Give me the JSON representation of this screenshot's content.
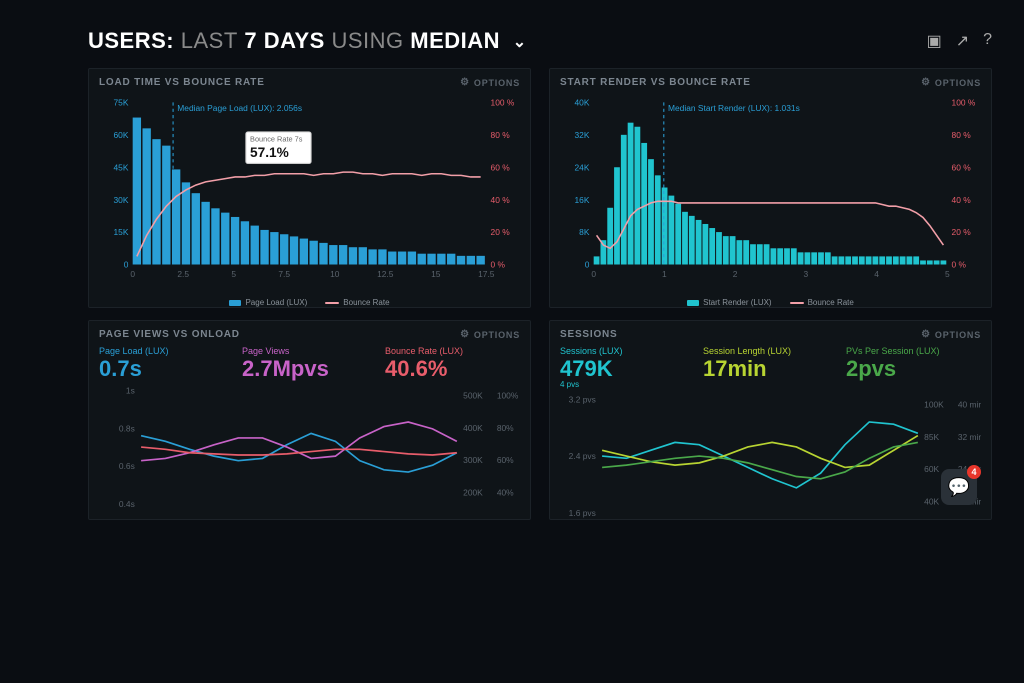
{
  "header": {
    "prefix": "USERS:",
    "dim1": "LAST",
    "bold1": "7 DAYS",
    "dim2": "USING",
    "bold2": "MEDIAN"
  },
  "panel1": {
    "title": "LOAD TIME VS BOUNCE RATE",
    "options": "OPTIONS",
    "type": "bar+line",
    "bar_color": "#2a9fd6",
    "line_color": "#f29fa8",
    "median_line_color": "#2a9fd6",
    "median_label": "Median Page Load (LUX): 2.056s",
    "median_x": 2.056,
    "y_left_label_color": "#2a9fd6",
    "y_left_ticks": [
      "0",
      "15K",
      "30K",
      "45K",
      "60K",
      "75K"
    ],
    "y_left_max": 75,
    "y_right_ticks": [
      "0 %",
      "20 %",
      "40 %",
      "60 %",
      "80 %",
      "100 %"
    ],
    "y_right_max": 100,
    "y_right_color": "#e85d6b",
    "x_ticks": [
      "0",
      "2.5",
      "5",
      "7.5",
      "10",
      "12.5",
      "15",
      "17.5"
    ],
    "x_max": 18,
    "bars": [
      68,
      63,
      58,
      55,
      44,
      38,
      33,
      29,
      26,
      24,
      22,
      20,
      18,
      16,
      15,
      14,
      13,
      12,
      11,
      10,
      9,
      9,
      8,
      8,
      7,
      7,
      6,
      6,
      6,
      5,
      5,
      5,
      5,
      4,
      4,
      4
    ],
    "line": [
      5,
      18,
      28,
      36,
      42,
      46,
      49,
      51,
      52,
      53,
      54,
      54,
      55,
      55,
      56,
      56,
      56,
      56,
      55,
      56,
      56,
      57,
      57,
      56,
      56,
      55,
      56,
      56,
      56,
      55,
      56,
      56,
      55,
      55,
      54,
      54
    ],
    "tooltip": {
      "label": "Bounce Rate 7s",
      "value": "57.1%"
    },
    "legend": [
      {
        "label": "Page Load (LUX)",
        "type": "bar",
        "color": "#2a9fd6"
      },
      {
        "label": "Bounce Rate",
        "type": "line",
        "color": "#f29fa8"
      }
    ]
  },
  "panel2": {
    "title": "START RENDER VS BOUNCE RATE",
    "options": "OPTIONS",
    "type": "bar+line",
    "bar_color": "#20c4cf",
    "line_color": "#f29fa8",
    "median_line_color": "#2a9fd6",
    "median_label": "Median Start Render (LUX): 1.031s",
    "median_x": 1.031,
    "y_left_ticks": [
      "0",
      "8K",
      "16K",
      "24K",
      "32K",
      "40K"
    ],
    "y_left_max": 40,
    "y_right_ticks": [
      "0 %",
      "20 %",
      "40 %",
      "60 %",
      "80 %",
      "100 %"
    ],
    "y_right_max": 100,
    "y_right_color": "#e85d6b",
    "x_ticks": [
      "0",
      "1",
      "2",
      "3",
      "4",
      "5"
    ],
    "x_max": 5.2,
    "bars": [
      2,
      6,
      14,
      24,
      32,
      35,
      34,
      30,
      26,
      22,
      19,
      17,
      15,
      13,
      12,
      11,
      10,
      9,
      8,
      7,
      7,
      6,
      6,
      5,
      5,
      5,
      4,
      4,
      4,
      4,
      3,
      3,
      3,
      3,
      3,
      2,
      2,
      2,
      2,
      2,
      2,
      2,
      2,
      2,
      2,
      2,
      2,
      2,
      1,
      1,
      1,
      1
    ],
    "line": [
      18,
      12,
      10,
      14,
      22,
      30,
      34,
      36,
      38,
      39,
      39,
      39,
      38,
      38,
      38,
      38,
      38,
      38,
      38,
      38,
      38,
      38,
      38,
      38,
      38,
      38,
      38,
      38,
      38,
      38,
      38,
      38,
      38,
      38,
      38,
      38,
      38,
      38,
      38,
      38,
      38,
      38,
      37,
      36,
      36,
      35,
      34,
      32,
      29,
      24,
      18,
      12
    ],
    "legend": [
      {
        "label": "Start Render (LUX)",
        "type": "bar",
        "color": "#20c4cf"
      },
      {
        "label": "Bounce Rate",
        "type": "line",
        "color": "#f29fa8"
      }
    ]
  },
  "panel3": {
    "title": "PAGE VIEWS VS ONLOAD",
    "options": "OPTIONS",
    "type": "multiline",
    "metrics": [
      {
        "label": "Page Load (LUX)",
        "value": "0.7s",
        "color": "#2a9fd6"
      },
      {
        "label": "Page Views",
        "value": "2.7Mpvs",
        "color": "#c863c8"
      },
      {
        "label": "Bounce Rate (LUX)",
        "value": "40.6%",
        "color": "#e85d6b"
      }
    ],
    "y_left_ticks": [
      "0.4s",
      "0.6s",
      "0.8s",
      "1s"
    ],
    "y_left_color": "#2a9fd6",
    "y_right1_ticks": [
      "200K",
      "300K",
      "400K",
      "500K"
    ],
    "y_right1_color": "#c863c8",
    "y_right2_ticks": [
      "40%",
      "60%",
      "80%",
      "100%"
    ],
    "y_right2_color": "#e85d6b",
    "lines": [
      {
        "color": "#2a9fd6",
        "pts": [
          60,
          55,
          48,
          42,
          38,
          40,
          52,
          62,
          55,
          38,
          30,
          28,
          34,
          45
        ]
      },
      {
        "color": "#c863c8",
        "pts": [
          38,
          40,
          45,
          52,
          58,
          58,
          50,
          40,
          42,
          58,
          68,
          72,
          66,
          55
        ]
      },
      {
        "color": "#e85d6b",
        "pts": [
          50,
          48,
          45,
          44,
          43,
          43,
          44,
          46,
          48,
          48,
          46,
          44,
          43,
          45
        ]
      }
    ]
  },
  "panel4": {
    "title": "SESSIONS",
    "options": "OPTIONS",
    "type": "multiline",
    "metrics": [
      {
        "label": "Sessions (LUX)",
        "value": "479K",
        "sub": "4 pvs",
        "color": "#20c4cf"
      },
      {
        "label": "Session Length (LUX)",
        "value": "17min",
        "color": "#b8d432"
      },
      {
        "label": "PVs Per Session (LUX)",
        "value": "2pvs",
        "color": "#4aa84a"
      }
    ],
    "y_left_ticks": [
      "1.6 pvs",
      "2.4 pvs",
      "3.2 pvs"
    ],
    "y_left_color": "#4aa84a",
    "y_right_rows": [
      {
        "a": "100K",
        "b": "40 min"
      },
      {
        "a": "85K",
        "b": "32 min"
      },
      {
        "a": "60K",
        "b": "24 min"
      },
      {
        "a": "40K",
        "b": "16 min"
      }
    ],
    "y_right_a_color": "#20c4cf",
    "y_right_b_color": "#b8d432",
    "lines": [
      {
        "color": "#20c4cf",
        "pts": [
          50,
          48,
          55,
          62,
          60,
          50,
          40,
          30,
          22,
          35,
          60,
          80,
          78,
          70
        ]
      },
      {
        "color": "#b8d432",
        "pts": [
          55,
          50,
          45,
          42,
          44,
          50,
          58,
          62,
          58,
          48,
          40,
          42,
          55,
          68
        ]
      },
      {
        "color": "#4aa84a",
        "pts": [
          40,
          42,
          45,
          48,
          50,
          48,
          44,
          38,
          32,
          30,
          36,
          48,
          58,
          62
        ]
      }
    ]
  },
  "chat_count": "4"
}
